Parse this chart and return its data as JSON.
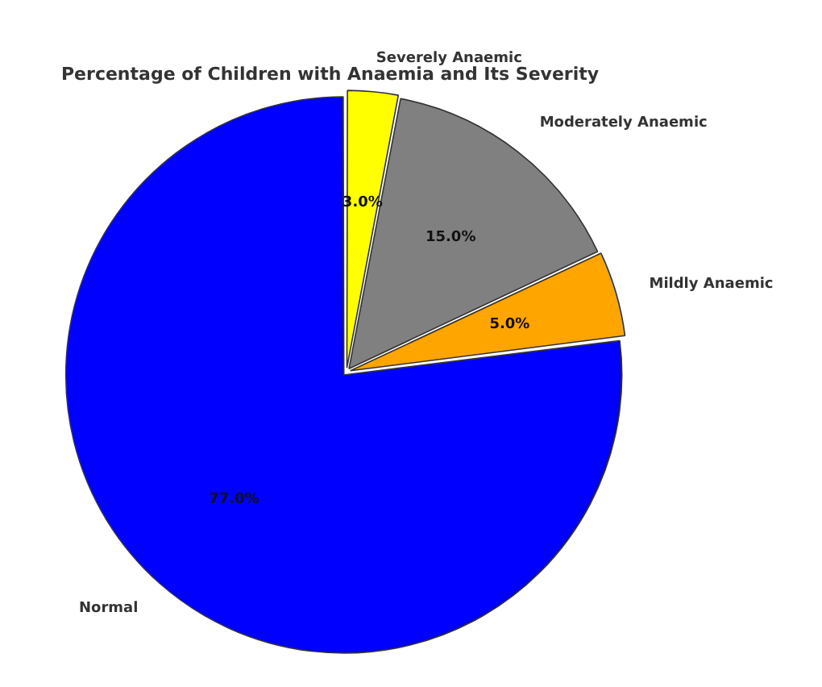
{
  "chart_data": {
    "type": "pie",
    "title": "Percentage of Children with Anaemia and Its Severity",
    "categories": [
      "Severely Anaemic",
      "Moderately Anaemic",
      "Mildly Anaemic",
      "Normal"
    ],
    "values": [
      3,
      15,
      5,
      77
    ],
    "colors": [
      "#ffff00",
      "#808080",
      "#ffa500",
      "#0000ff"
    ],
    "value_labels": [
      "3.0%",
      "15.0%",
      "5.0%",
      "77.0%"
    ],
    "legend": false
  }
}
